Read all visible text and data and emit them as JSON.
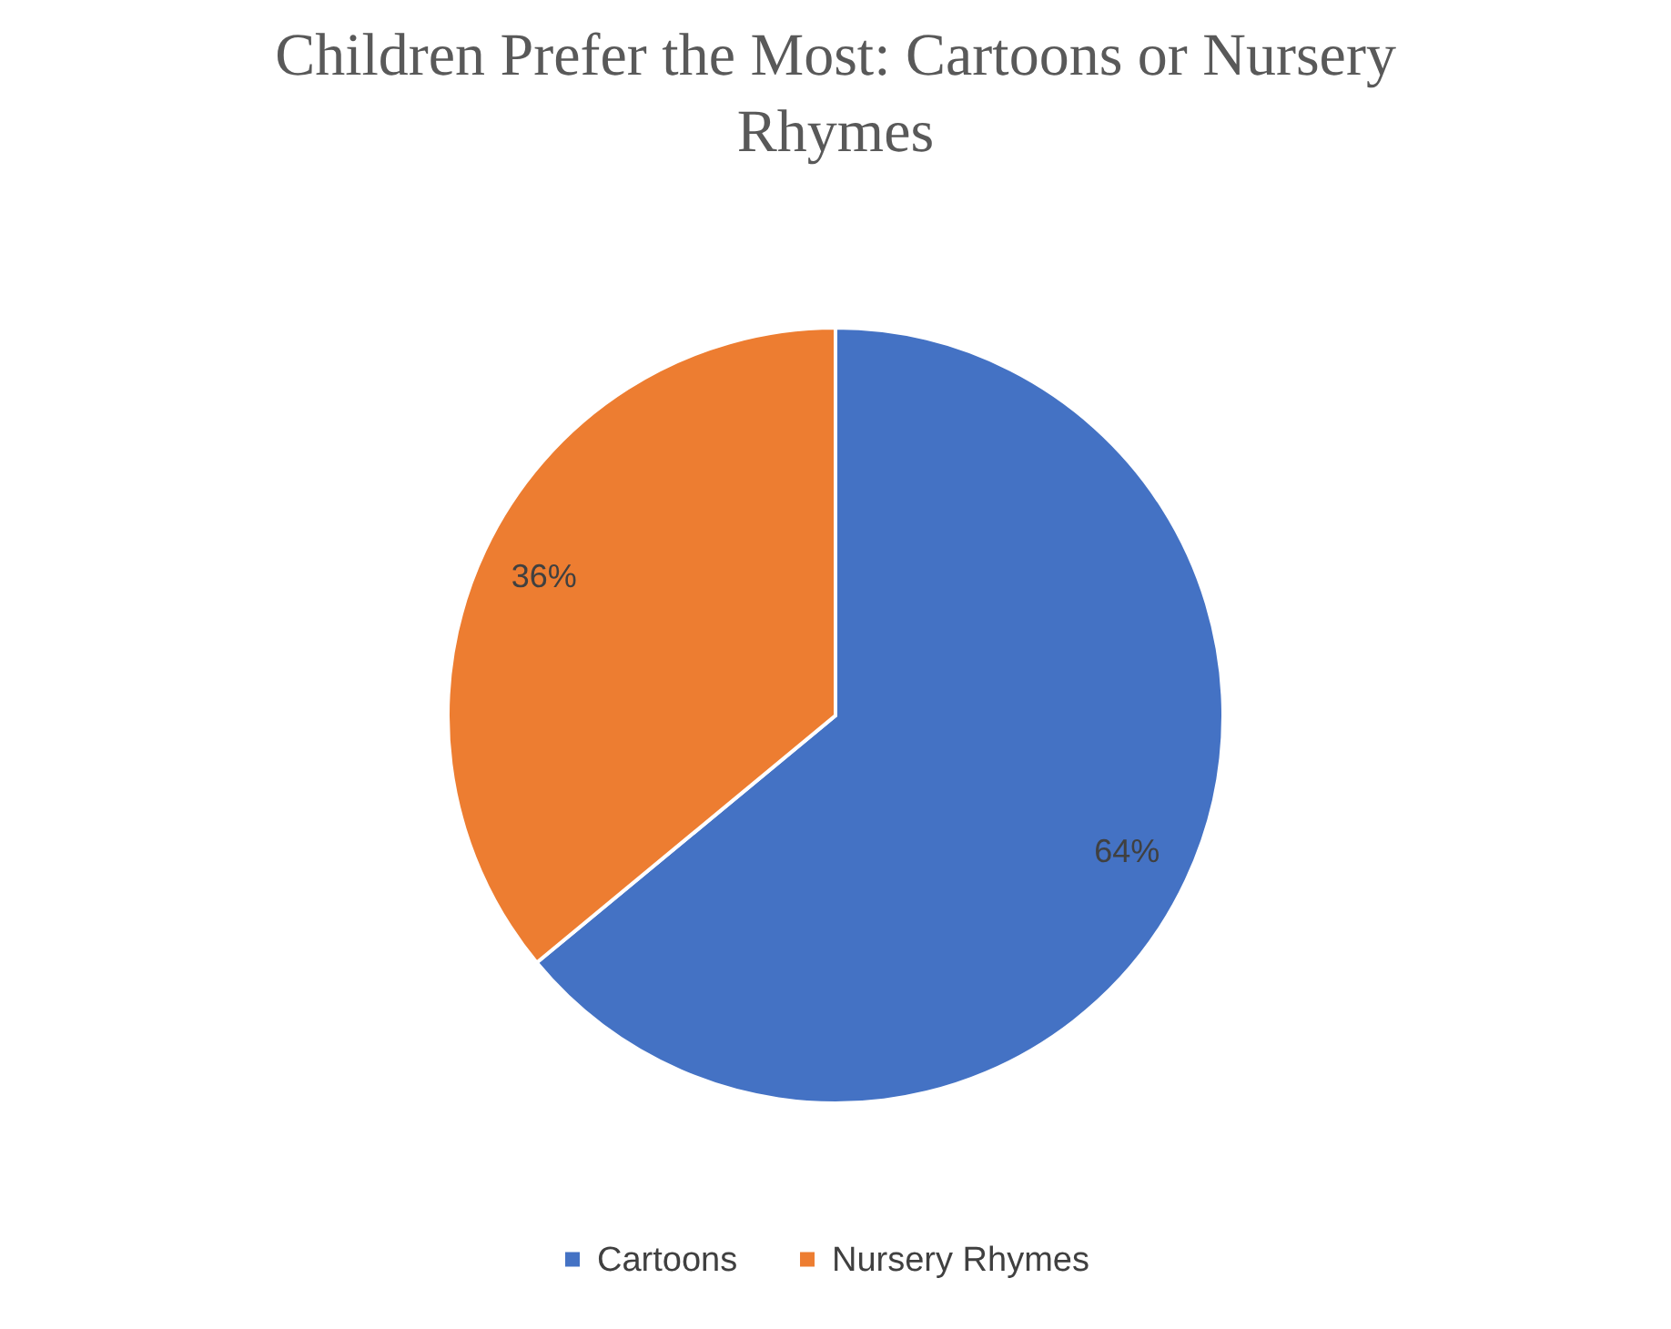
{
  "chart_data": {
    "type": "pie",
    "title": "Children Prefer the Most: Cartoons or Nursery Rhymes",
    "categories": [
      "Cartoons",
      "Nursery Rhymes"
    ],
    "values": [
      64,
      36
    ],
    "colors": [
      "#4472c4",
      "#ed7d31"
    ],
    "value_labels": [
      "64%",
      "36%"
    ],
    "legend": "bottom"
  }
}
